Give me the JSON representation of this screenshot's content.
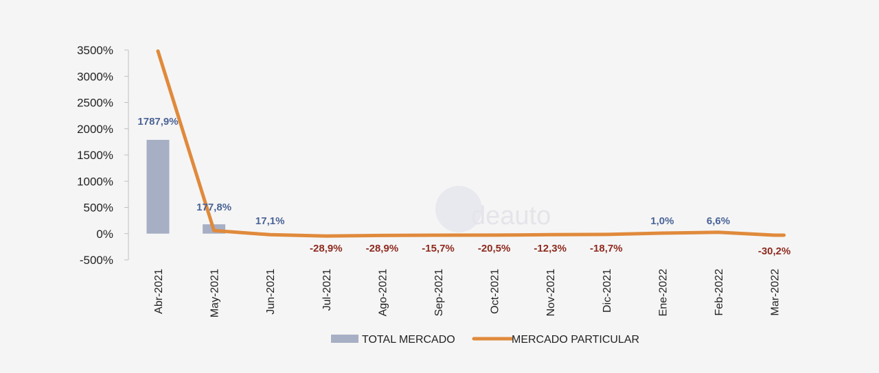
{
  "chart_data": {
    "type": "bar",
    "categories": [
      "Abr-2021",
      "May-2021",
      "Jun-2021",
      "Jul-2021",
      "Ago-2021",
      "Sep-2021",
      "Oct-2021",
      "Nov-2021",
      "Dic-2021",
      "Ene-2022",
      "Feb-2022",
      "Mar-2022"
    ],
    "y_ticks": [
      "3500%",
      "3000%",
      "2500%",
      "2000%",
      "1500%",
      "1000%",
      "500%",
      "0%",
      "-500%"
    ],
    "ylim": [
      -500,
      3500
    ],
    "grid": false,
    "legend_position": "bottom",
    "series": [
      {
        "name": "TOTAL MERCADO",
        "kind": "bar",
        "color": "#a7afc4",
        "values": [
          1787.9,
          177.8,
          null,
          null,
          null,
          null,
          null,
          null,
          null,
          null,
          null,
          null
        ]
      },
      {
        "name": "MERCADO PARTICULAR",
        "kind": "line",
        "color": "#e08a3c",
        "values": [
          3480,
          60,
          -20,
          -45,
          -35,
          -30,
          -28,
          -20,
          -15,
          10,
          25,
          -30
        ]
      }
    ],
    "data_labels": [
      {
        "index": 0,
        "text": "1787,9%",
        "value": 1787.9,
        "tone": "positive"
      },
      {
        "index": 1,
        "text": "177,8%",
        "value": 177.8,
        "tone": "positive"
      },
      {
        "index": 2,
        "text": "17,1%",
        "value": 17.1,
        "tone": "positive"
      },
      {
        "index": 3,
        "text": "-28,9%",
        "value": -28.9,
        "tone": "negative"
      },
      {
        "index": 4,
        "text": "-28,9%",
        "value": -28.9,
        "tone": "negative"
      },
      {
        "index": 5,
        "text": "-15,7%",
        "value": -15.7,
        "tone": "negative"
      },
      {
        "index": 6,
        "text": "-20,5%",
        "value": -20.5,
        "tone": "negative"
      },
      {
        "index": 7,
        "text": "-12,3%",
        "value": -12.3,
        "tone": "negative"
      },
      {
        "index": 8,
        "text": "-18,7%",
        "value": -18.7,
        "tone": "negative"
      },
      {
        "index": 9,
        "text": "1,0%",
        "value": 1.0,
        "tone": "positive"
      },
      {
        "index": 10,
        "text": "6,6%",
        "value": 6.6,
        "tone": "positive"
      },
      {
        "index": 11,
        "text": "-30,2%",
        "value": -30.2,
        "tone": "negative"
      }
    ],
    "label_colors": {
      "positive": "#4a6396",
      "negative": "#8e2a1f",
      "negative_tick": "#9b2d20"
    }
  },
  "watermark": "deauto"
}
